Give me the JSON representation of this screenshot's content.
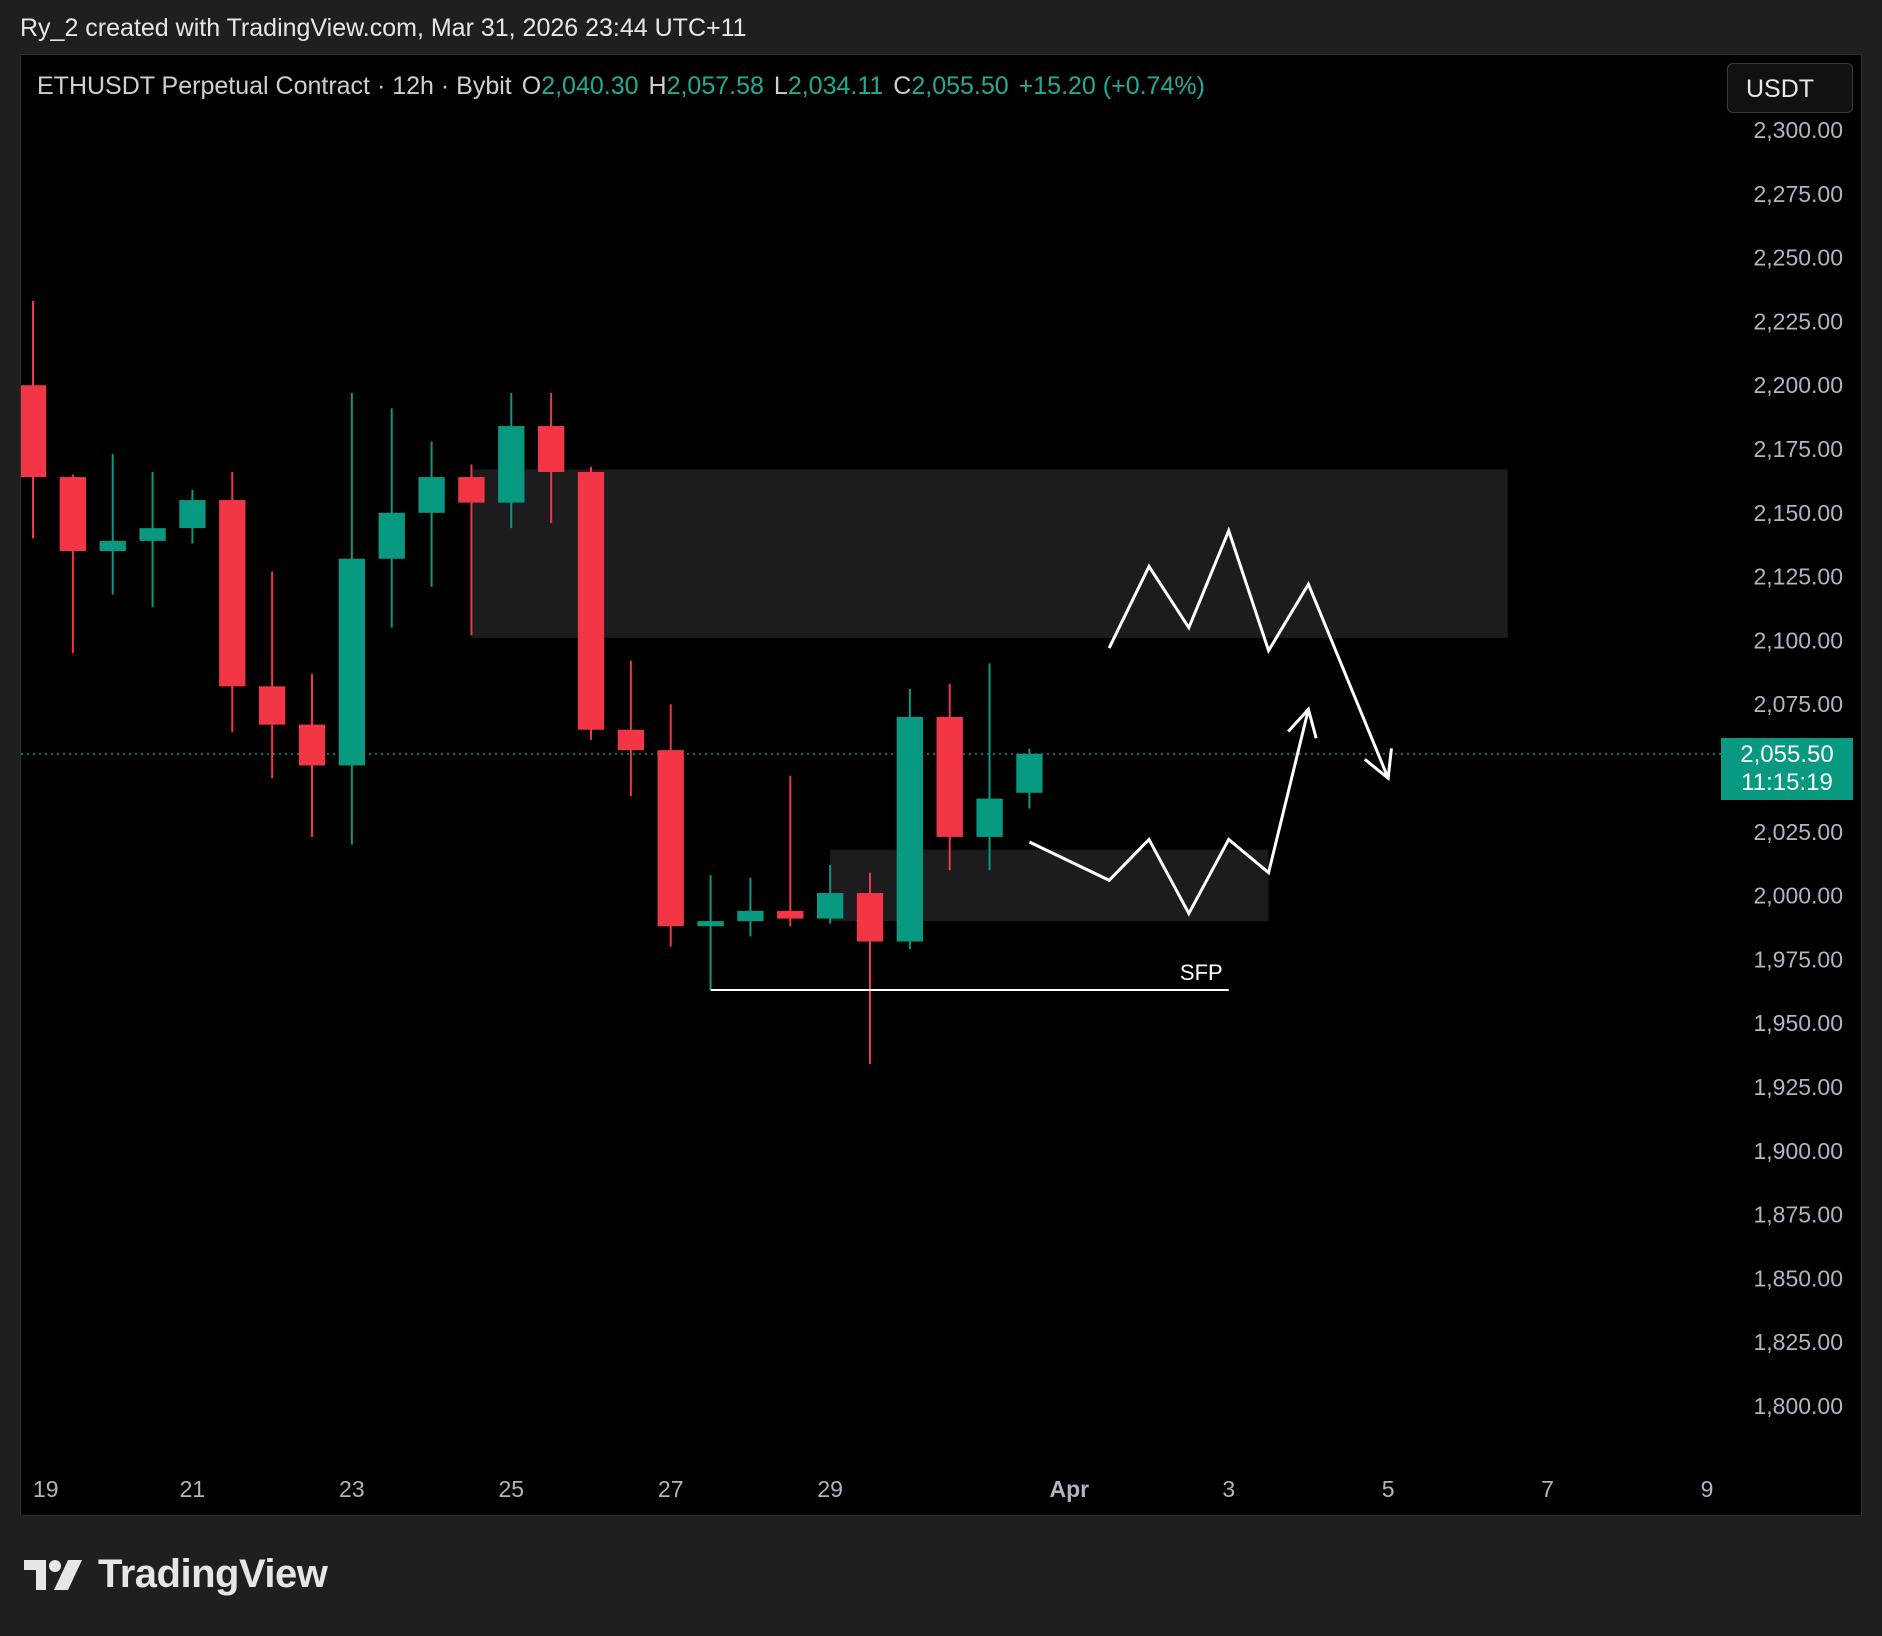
{
  "page": {
    "attribution": "Ry_2 created with TradingView.com, Mar 31, 2026 23:44 UTC+11",
    "brand": "TradingView"
  },
  "legend": {
    "symbol": "ETHUSDT Perpetual Contract · 12h · Bybit",
    "open_label": "O",
    "open": "2,040.30",
    "high_label": "H",
    "high": "2,057.58",
    "low_label": "L",
    "low": "2,034.11",
    "close_label": "C",
    "close": "2,055.50",
    "change": "+15.20 (+0.74%)"
  },
  "currency_button": "USDT",
  "last_price": {
    "price": "2,055.50",
    "countdown": "11:15:19"
  },
  "colors": {
    "up": "#089981",
    "down": "#f23645",
    "zone": "#1c1c1e",
    "drawing": "#ffffff",
    "axis_text": "#b2b5be",
    "last_price_line": "#089981"
  },
  "icons": {
    "logo": "tradingview-logo-icon"
  },
  "chart_data": {
    "type": "candlestick",
    "timeframe": "12h",
    "ylim": [
      1780,
      2320
    ],
    "yticks": [
      2300,
      2275,
      2250,
      2225,
      2200,
      2175,
      2150,
      2125,
      2100,
      2075,
      2025,
      2000,
      1975,
      1950,
      1925,
      1900,
      1875,
      1850,
      1825,
      1800
    ],
    "ytick_labels": [
      "2,300.00",
      "2,275.00",
      "2,250.00",
      "2,225.00",
      "2,200.00",
      "2,175.00",
      "2,150.00",
      "2,125.00",
      "2,100.00",
      "2,075.00",
      "2,025.00",
      "2,000.00",
      "1,975.00",
      "1,950.00",
      "1,925.00",
      "1,900.00",
      "1,875.00",
      "1,850.00",
      "1,825.00",
      "1,800.00"
    ],
    "xticks": [
      {
        "label": "19",
        "date": "2026-03-19",
        "bold": false
      },
      {
        "label": "21",
        "date": "2026-03-21",
        "bold": false
      },
      {
        "label": "23",
        "date": "2026-03-23",
        "bold": false
      },
      {
        "label": "25",
        "date": "2026-03-25",
        "bold": false
      },
      {
        "label": "27",
        "date": "2026-03-27",
        "bold": false
      },
      {
        "label": "29",
        "date": "2026-03-29",
        "bold": false
      },
      {
        "label": "Apr",
        "date": "2026-04-01",
        "bold": true
      },
      {
        "label": "3",
        "date": "2026-04-03",
        "bold": false
      },
      {
        "label": "5",
        "date": "2026-04-05",
        "bold": false
      },
      {
        "label": "7",
        "date": "2026-04-07",
        "bold": false
      },
      {
        "label": "9",
        "date": "2026-04-09",
        "bold": false
      }
    ],
    "xlim": [
      "2026-03-19 00:00",
      "2026-04-09 00:00"
    ],
    "candles": [
      {
        "t": "2026-03-19 00:00",
        "o": 2200,
        "h": 2233,
        "l": 2140,
        "c": 2164
      },
      {
        "t": "2026-03-19 12:00",
        "o": 2164,
        "h": 2165,
        "l": 2095,
        "c": 2135
      },
      {
        "t": "2026-03-20 00:00",
        "o": 2135,
        "h": 2173,
        "l": 2118,
        "c": 2139
      },
      {
        "t": "2026-03-20 12:00",
        "o": 2139,
        "h": 2166,
        "l": 2113,
        "c": 2144
      },
      {
        "t": "2026-03-21 00:00",
        "o": 2144,
        "h": 2159,
        "l": 2138,
        "c": 2155
      },
      {
        "t": "2026-03-21 12:00",
        "o": 2155,
        "h": 2166,
        "l": 2064,
        "c": 2082
      },
      {
        "t": "2026-03-22 00:00",
        "o": 2082,
        "h": 2127,
        "l": 2046,
        "c": 2067
      },
      {
        "t": "2026-03-22 12:00",
        "o": 2067,
        "h": 2087,
        "l": 2023,
        "c": 2051
      },
      {
        "t": "2026-03-23 00:00",
        "o": 2051,
        "h": 2197,
        "l": 2020,
        "c": 2132
      },
      {
        "t": "2026-03-23 12:00",
        "o": 2132,
        "h": 2191,
        "l": 2105,
        "c": 2150
      },
      {
        "t": "2026-03-24 00:00",
        "o": 2150,
        "h": 2178,
        "l": 2121,
        "c": 2164
      },
      {
        "t": "2026-03-24 12:00",
        "o": 2164,
        "h": 2169,
        "l": 2102,
        "c": 2154
      },
      {
        "t": "2026-03-25 00:00",
        "o": 2154,
        "h": 2197,
        "l": 2144,
        "c": 2184
      },
      {
        "t": "2026-03-25 12:00",
        "o": 2184,
        "h": 2197,
        "l": 2146,
        "c": 2166
      },
      {
        "t": "2026-03-26 00:00",
        "o": 2166,
        "h": 2168,
        "l": 2061,
        "c": 2065
      },
      {
        "t": "2026-03-26 12:00",
        "o": 2065,
        "h": 2092,
        "l": 2039,
        "c": 2057
      },
      {
        "t": "2026-03-27 00:00",
        "o": 2057,
        "h": 2075,
        "l": 1980,
        "c": 1988
      },
      {
        "t": "2026-03-27 12:00",
        "o": 1988,
        "h": 2008,
        "l": 1963,
        "c": 1990
      },
      {
        "t": "2026-03-28 00:00",
        "o": 1990,
        "h": 2007,
        "l": 1984,
        "c": 1994
      },
      {
        "t": "2026-03-28 12:00",
        "o": 1994,
        "h": 2047,
        "l": 1988,
        "c": 1991
      },
      {
        "t": "2026-03-29 00:00",
        "o": 1991,
        "h": 2012,
        "l": 1989,
        "c": 2001
      },
      {
        "t": "2026-03-29 12:00",
        "o": 2001,
        "h": 2009,
        "l": 1934,
        "c": 1982
      },
      {
        "t": "2026-03-30 00:00",
        "o": 1982,
        "h": 2081,
        "l": 1979,
        "c": 2070
      },
      {
        "t": "2026-03-30 12:00",
        "o": 2070,
        "h": 2083,
        "l": 2010,
        "c": 2023
      },
      {
        "t": "2026-03-31 00:00",
        "o": 2023,
        "h": 2091,
        "l": 2010,
        "c": 2038
      },
      {
        "t": "2026-03-31 12:00",
        "o": 2040.3,
        "h": 2057.58,
        "l": 2034.11,
        "c": 2055.5
      }
    ],
    "zones": [
      {
        "name": "supply-zone",
        "from": "2026-03-24 12:00",
        "to": "2026-04-06 12:00",
        "low": 2101,
        "high": 2167
      },
      {
        "name": "demand-zone",
        "from": "2026-03-29 00:00",
        "to": "2026-04-03 12:00",
        "low": 1990,
        "high": 2018
      }
    ],
    "annotations": [
      {
        "type": "hline",
        "label": "SFP",
        "from": "2026-03-27 12:00",
        "to": "2026-04-03 00:00",
        "y": 1963
      }
    ],
    "projection_paths": [
      {
        "points": [
          [
            "2026-03-31 12:00",
            2021
          ],
          [
            "2026-04-01 12:00",
            2006
          ],
          [
            "2026-04-02 00:00",
            2022
          ],
          [
            "2026-04-02 12:00",
            1993
          ],
          [
            "2026-04-03 00:00",
            2022
          ],
          [
            "2026-04-03 12:00",
            2009
          ],
          [
            "2026-04-04 00:00",
            2073
          ]
        ],
        "arrow": true
      },
      {
        "points": [
          [
            "2026-04-01 12:00",
            2097
          ],
          [
            "2026-04-02 00:00",
            2129
          ],
          [
            "2026-04-02 12:00",
            2105
          ],
          [
            "2026-04-03 00:00",
            2143
          ],
          [
            "2026-04-03 12:00",
            2096
          ],
          [
            "2026-04-04 00:00",
            2122
          ],
          [
            "2026-04-05 00:00",
            2046
          ]
        ],
        "arrow": true
      }
    ],
    "last_price": 2055.5
  }
}
